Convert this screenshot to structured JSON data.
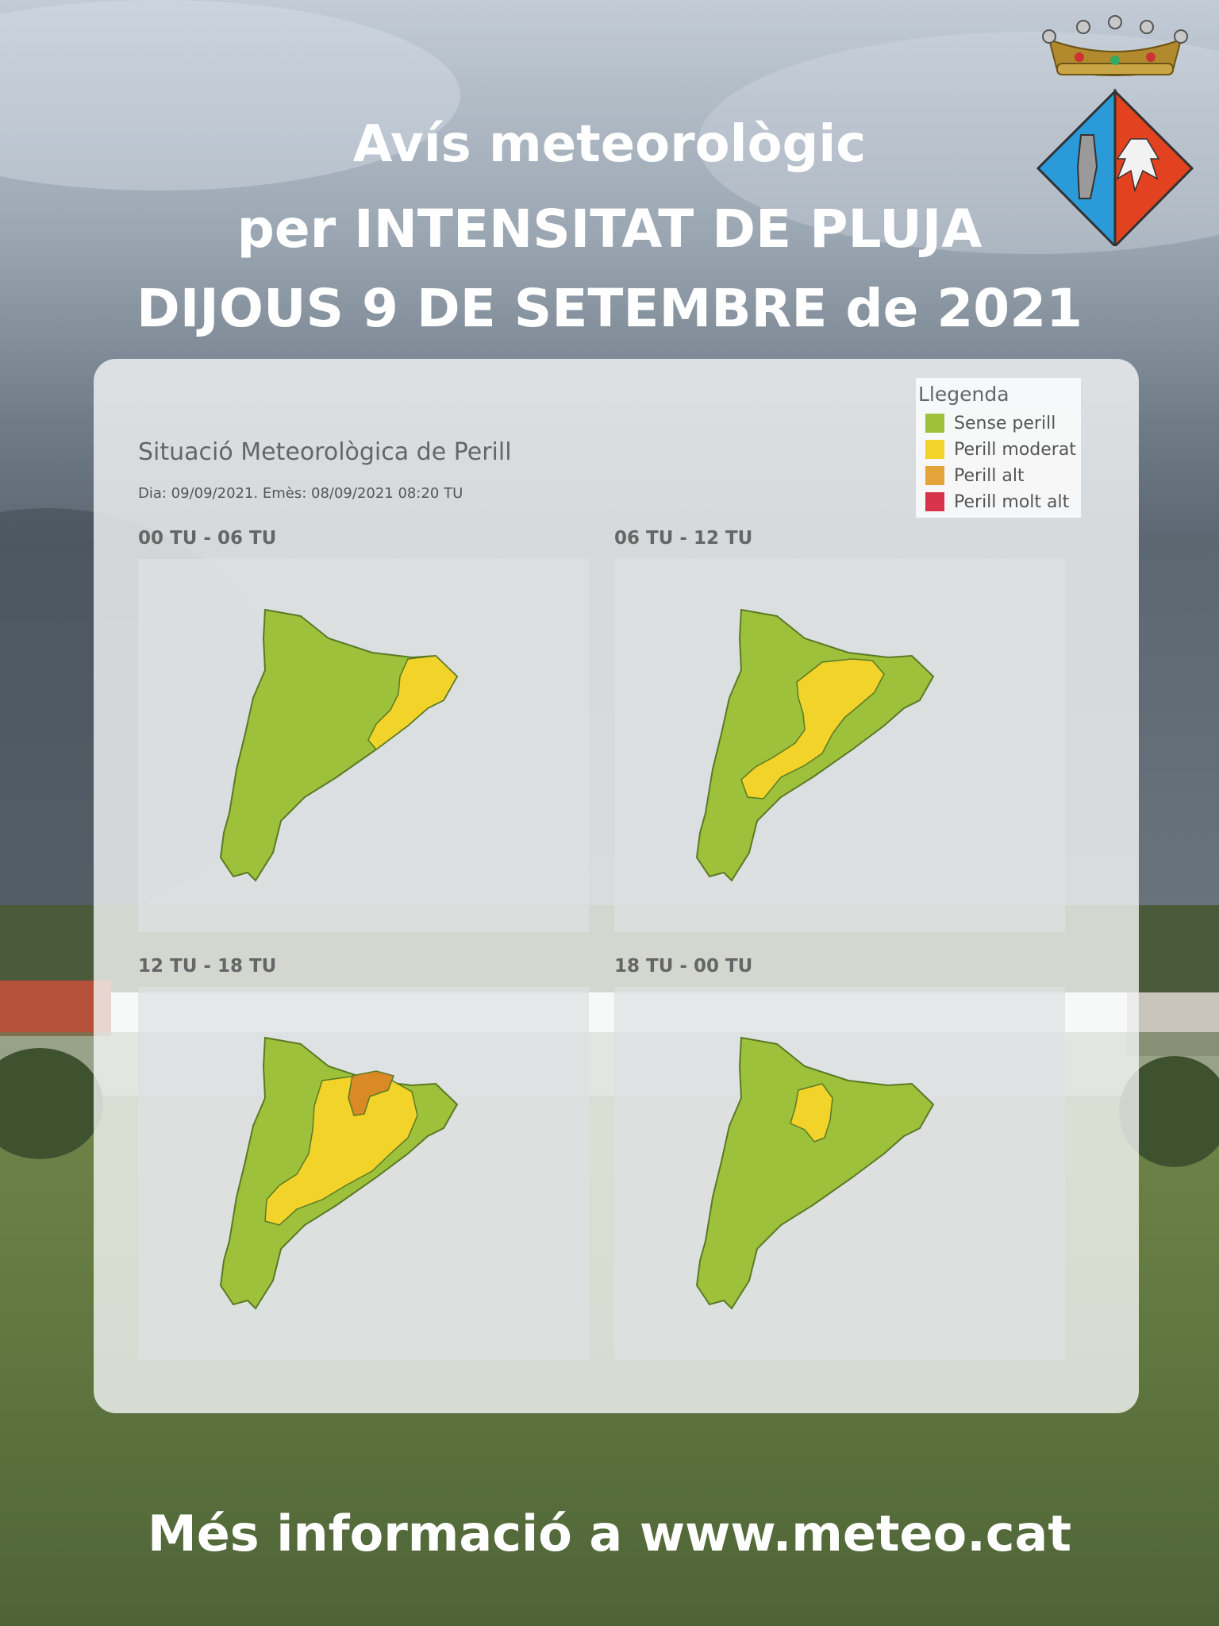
{
  "header": {
    "line1": "Avís meteorològic",
    "line2": "per INTENSITAT DE PLUJA",
    "line3": "DIJOUS 9 DE SETEMBRE de 2021"
  },
  "panel": {
    "title": "Situació Meteorològica de Perill",
    "subtitle": "Dia: 09/09/2021. Emès: 08/09/2021 08:20 TU"
  },
  "legend": {
    "title": "Llegenda",
    "items": [
      {
        "label": "Sense perill",
        "color": "#9dc13a"
      },
      {
        "label": "Perill moderat",
        "color": "#f2d32a"
      },
      {
        "label": "Perill alt",
        "color": "#e5a43a"
      },
      {
        "label": "Perill molt alt",
        "color": "#d7334a"
      }
    ]
  },
  "maps": [
    {
      "label": "00 TU - 06 TU",
      "levels": [
        "none",
        "moderate (north-east coast)"
      ]
    },
    {
      "label": "06 TU - 12 TU",
      "levels": [
        "none",
        "moderate (central band)"
      ]
    },
    {
      "label": "12 TU - 18 TU",
      "levels": [
        "none",
        "moderate (centre and south)",
        "high (small central-north area)"
      ]
    },
    {
      "label": "18 TU - 00 TU",
      "levels": [
        "none",
        "moderate (small central area)"
      ]
    }
  ],
  "colors": {
    "none": "#9dc13a",
    "moderate": "#f2d32a",
    "high": "#d98a24",
    "border": "#5a7a25"
  },
  "footer": {
    "text": "Més informació a www.meteo.cat"
  }
}
